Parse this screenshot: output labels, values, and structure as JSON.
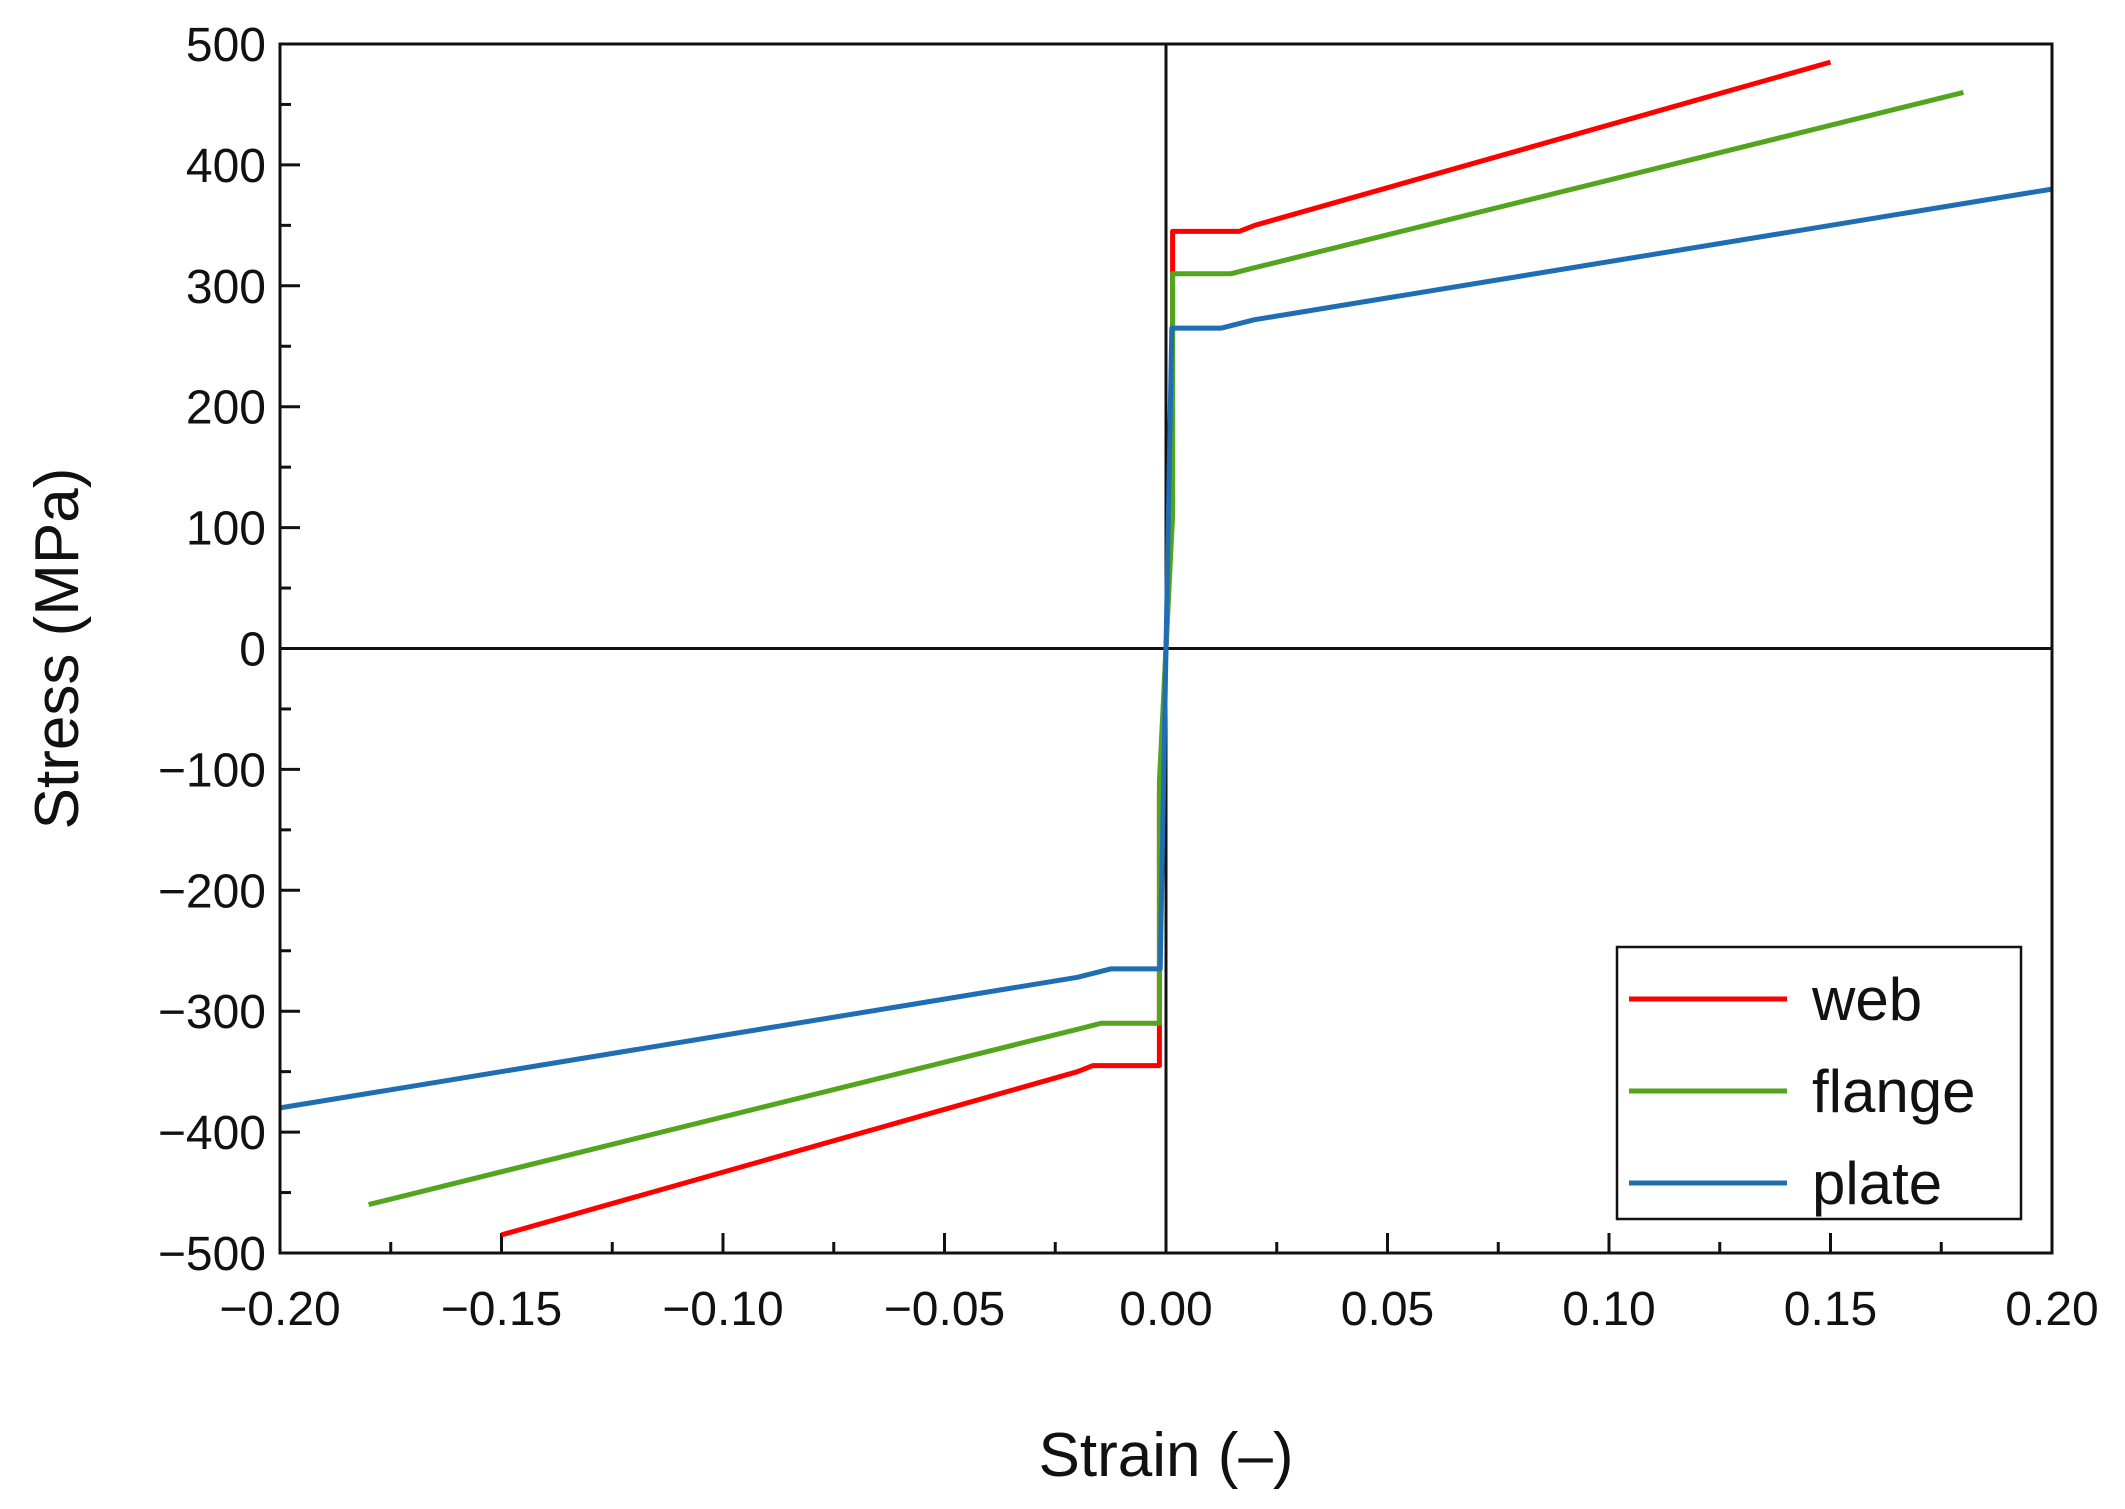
{
  "chart_data": {
    "type": "line",
    "xlabel": "Strain (–)",
    "ylabel": "Stress (MPa)",
    "xlim": [
      -0.2,
      0.2
    ],
    "ylim": [
      -500,
      500
    ],
    "x_ticks": [
      -0.2,
      -0.15,
      -0.1,
      -0.05,
      0.0,
      0.05,
      0.1,
      0.15,
      0.2
    ],
    "x_tick_labels": [
      "−0.20",
      "−0.15",
      "−0.10",
      "−0.05",
      "0.00",
      "0.05",
      "0.10",
      "0.15",
      "0.20"
    ],
    "y_ticks": [
      -500,
      -400,
      -300,
      -200,
      -100,
      0,
      100,
      200,
      300,
      400,
      500
    ],
    "y_tick_labels": [
      "−500",
      "−400",
      "−300",
      "−200",
      "−100",
      "0",
      "100",
      "200",
      "300",
      "400",
      "500"
    ],
    "legend_position": "bottom-right",
    "grid": false,
    "series": [
      {
        "name": "web",
        "color": "#ff0000",
        "x": [
          -0.15,
          -0.02,
          -0.0165,
          -0.0015,
          -0.0015,
          0.0,
          0.0015,
          0.0015,
          0.0165,
          0.02,
          0.15
        ],
        "y": [
          -485,
          -350,
          -345,
          -345,
          -120,
          0,
          120,
          345,
          345,
          350,
          485
        ]
      },
      {
        "name": "flange",
        "color": "#52a51c",
        "x": [
          -0.18,
          -0.02,
          -0.0147,
          -0.0015,
          -0.0015,
          0.0,
          0.0015,
          0.0015,
          0.0147,
          0.02,
          0.18
        ],
        "y": [
          -460,
          -315,
          -310,
          -310,
          -110,
          0,
          110,
          310,
          310,
          315,
          460
        ]
      },
      {
        "name": "plate",
        "color": "#1f6eb3",
        "x": [
          -0.2,
          -0.02,
          -0.0125,
          -0.0013,
          0.0,
          0.0013,
          0.0125,
          0.02,
          0.2
        ],
        "y": [
          -380,
          -272,
          -265,
          -265,
          0,
          265,
          265,
          272,
          380
        ]
      }
    ]
  }
}
